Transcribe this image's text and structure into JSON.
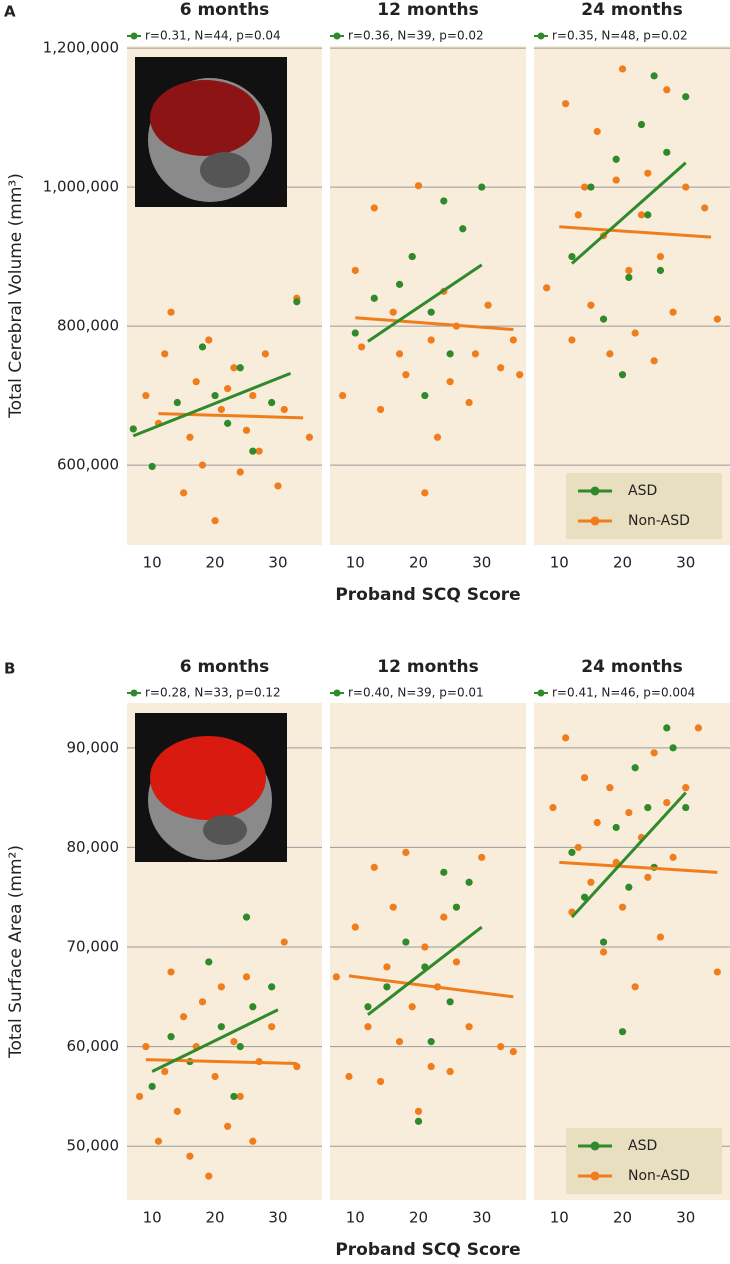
{
  "chart_data": [
    {
      "type": "scatter",
      "panel_label": "A",
      "title": "6 months",
      "annotation": "r=0.31, N=44, p=0.04",
      "ylabel": "Total Cerebral Volume (mm³)",
      "xlim": [
        6,
        37
      ],
      "xticks": [
        10,
        20,
        30
      ],
      "ylim": [
        485000,
        1203000
      ],
      "yticks": [
        {
          "value": 600000,
          "label": "600,000"
        },
        {
          "value": 800000,
          "label": "800,000"
        },
        {
          "value": 1000000,
          "label": "1,000,000"
        },
        {
          "value": 1200000,
          "label": "1,200,000"
        }
      ],
      "grid": true,
      "series": [
        {
          "name": "ASD",
          "color": "#2e8a2a",
          "x": [
            7,
            10,
            14,
            18,
            20,
            22,
            24,
            26,
            29,
            33
          ],
          "y": [
            652000,
            598000,
            690000,
            770000,
            700000,
            660000,
            740000,
            620000,
            690000,
            835000
          ],
          "fit_x": [
            7,
            32
          ],
          "fit_y": [
            642000,
            732000
          ]
        },
        {
          "name": "Non-ASD",
          "color": "#f07d1c",
          "x": [
            9,
            11,
            12,
            13,
            15,
            16,
            17,
            18,
            19,
            20,
            21,
            22,
            23,
            24,
            25,
            26,
            27,
            28,
            30,
            31,
            33,
            35
          ],
          "y": [
            700000,
            660000,
            760000,
            820000,
            560000,
            640000,
            720000,
            600000,
            780000,
            520000,
            680000,
            710000,
            740000,
            590000,
            650000,
            700000,
            620000,
            760000,
            570000,
            680000,
            840000,
            640000
          ],
          "fit_x": [
            11,
            34
          ],
          "fit_y": [
            674000,
            668000
          ]
        }
      ]
    },
    {
      "type": "scatter",
      "title": "12 months",
      "annotation": "r=0.36, N=39, p=0.02",
      "xlabel": "Proband SCQ Score",
      "xlim": [
        6,
        37
      ],
      "xticks": [
        10,
        20,
        30
      ],
      "ylim": [
        485000,
        1203000
      ],
      "series": [
        {
          "name": "ASD",
          "color": "#2e8a2a",
          "x": [
            10,
            13,
            17,
            19,
            21,
            22,
            24,
            25,
            27,
            30
          ],
          "y": [
            790000,
            840000,
            860000,
            900000,
            700000,
            820000,
            980000,
            760000,
            940000,
            1000000
          ],
          "fit_x": [
            12,
            30
          ],
          "fit_y": [
            778000,
            888000
          ]
        },
        {
          "name": "Non-ASD",
          "color": "#f07d1c",
          "x": [
            8,
            10,
            11,
            13,
            14,
            16,
            17,
            18,
            19,
            20,
            21,
            22,
            23,
            24,
            25,
            26,
            28,
            29,
            31,
            33,
            35,
            36
          ],
          "y": [
            700000,
            880000,
            770000,
            970000,
            680000,
            820000,
            760000,
            730000,
            900000,
            1002000,
            560000,
            780000,
            640000,
            850000,
            720000,
            800000,
            690000,
            760000,
            830000,
            740000,
            780000,
            730000
          ],
          "fit_x": [
            10,
            35
          ],
          "fit_y": [
            812000,
            795000
          ]
        }
      ]
    },
    {
      "type": "scatter",
      "title": "24 months",
      "annotation": "r=0.35, N=48, p=0.02",
      "legend": "lower right",
      "xlim": [
        6,
        37
      ],
      "xticks": [
        10,
        20,
        30
      ],
      "ylim": [
        485000,
        1203000
      ],
      "series": [
        {
          "name": "ASD",
          "color": "#2e8a2a",
          "x": [
            12,
            15,
            17,
            19,
            20,
            21,
            23,
            24,
            25,
            26,
            27,
            30
          ],
          "y": [
            900000,
            1000000,
            810000,
            1040000,
            730000,
            870000,
            1090000,
            960000,
            1160000,
            880000,
            1050000,
            1130000
          ],
          "fit_x": [
            12,
            30
          ],
          "fit_y": [
            890000,
            1035000
          ]
        },
        {
          "name": "Non-ASD",
          "color": "#f07d1c",
          "x": [
            8,
            11,
            12,
            13,
            14,
            15,
            16,
            17,
            18,
            19,
            20,
            21,
            22,
            23,
            24,
            25,
            26,
            27,
            28,
            30,
            33,
            35
          ],
          "y": [
            855000,
            1120000,
            780000,
            960000,
            1000000,
            830000,
            1080000,
            930000,
            760000,
            1010000,
            1170000,
            880000,
            790000,
            960000,
            1020000,
            750000,
            900000,
            1140000,
            820000,
            1000000,
            970000,
            810000
          ],
          "fit_x": [
            10,
            34
          ],
          "fit_y": [
            943000,
            928000
          ]
        }
      ]
    },
    {
      "type": "scatter",
      "panel_label": "B",
      "title": "6 months",
      "annotation": "r=0.28, N=33, p=0.12",
      "ylabel": "Total Surface Area (mm²)",
      "xlim": [
        6,
        37
      ],
      "xticks": [
        10,
        20,
        30
      ],
      "ylim": [
        44600,
        94500
      ],
      "yticks": [
        {
          "value": 50000,
          "label": "50,000"
        },
        {
          "value": 60000,
          "label": "60,000"
        },
        {
          "value": 70000,
          "label": "70,000"
        },
        {
          "value": 80000,
          "label": "80,000"
        },
        {
          "value": 90000,
          "label": "90,000"
        }
      ],
      "grid": true,
      "series": [
        {
          "name": "ASD",
          "color": "#2e8a2a",
          "x": [
            10,
            13,
            16,
            19,
            21,
            23,
            24,
            25,
            26,
            29
          ],
          "y": [
            56000,
            61000,
            58500,
            68500,
            62000,
            55000,
            60000,
            73000,
            64000,
            66000
          ],
          "fit_x": [
            10,
            30
          ],
          "fit_y": [
            57500,
            63700
          ]
        },
        {
          "name": "Non-ASD",
          "color": "#f07d1c",
          "x": [
            8,
            9,
            11,
            12,
            13,
            14,
            15,
            16,
            17,
            18,
            19,
            20,
            21,
            22,
            23,
            24,
            25,
            26,
            27,
            29,
            31,
            33
          ],
          "y": [
            55000,
            60000,
            50500,
            57500,
            67500,
            53500,
            63000,
            49000,
            60000,
            64500,
            47000,
            57000,
            66000,
            52000,
            60500,
            55000,
            67000,
            50500,
            58500,
            62000,
            70500,
            58000
          ],
          "fit_x": [
            9,
            33
          ],
          "fit_y": [
            58700,
            58300
          ]
        }
      ]
    },
    {
      "type": "scatter",
      "title": "12 months",
      "annotation": "r=0.40, N=39, p=0.01",
      "xlabel": "Proband SCQ Score",
      "xlim": [
        6,
        37
      ],
      "xticks": [
        10,
        20,
        30
      ],
      "ylim": [
        44600,
        94500
      ],
      "series": [
        {
          "name": "ASD",
          "color": "#2e8a2a",
          "x": [
            12,
            15,
            18,
            20,
            21,
            22,
            24,
            25,
            26,
            28
          ],
          "y": [
            64000,
            66000,
            70500,
            52500,
            68000,
            60500,
            77500,
            64500,
            74000,
            76500
          ],
          "fit_x": [
            12,
            30
          ],
          "fit_y": [
            63200,
            72000
          ]
        },
        {
          "name": "Non-ASD",
          "color": "#f07d1c",
          "x": [
            7,
            9,
            10,
            12,
            13,
            14,
            15,
            16,
            17,
            18,
            19,
            20,
            21,
            22,
            23,
            24,
            25,
            26,
            28,
            30,
            33,
            35
          ],
          "y": [
            67000,
            57000,
            72000,
            62000,
            78000,
            56500,
            68000,
            74000,
            60500,
            79500,
            64000,
            53500,
            70000,
            58000,
            66000,
            73000,
            57500,
            68500,
            62000,
            79000,
            60000,
            59500
          ],
          "fit_x": [
            9,
            35
          ],
          "fit_y": [
            67100,
            65000
          ]
        }
      ]
    },
    {
      "type": "scatter",
      "title": "24 months",
      "annotation": "r=0.41, N=46, p=0.004",
      "legend": "lower right",
      "xlim": [
        6,
        37
      ],
      "xticks": [
        10,
        20,
        30
      ],
      "ylim": [
        44600,
        94500
      ],
      "series": [
        {
          "name": "ASD",
          "color": "#2e8a2a",
          "x": [
            12,
            14,
            17,
            19,
            20,
            21,
            22,
            24,
            25,
            27,
            28,
            30
          ],
          "y": [
            79500,
            75000,
            70500,
            82000,
            61500,
            76000,
            88000,
            84000,
            78000,
            92000,
            90000,
            84000
          ],
          "fit_x": [
            12,
            30
          ],
          "fit_y": [
            73000,
            85500
          ]
        },
        {
          "name": "Non-ASD",
          "color": "#f07d1c",
          "x": [
            9,
            11,
            12,
            13,
            14,
            15,
            16,
            17,
            18,
            19,
            20,
            21,
            22,
            23,
            24,
            25,
            26,
            27,
            28,
            30,
            32,
            35
          ],
          "y": [
            84000,
            91000,
            73500,
            80000,
            87000,
            76500,
            82500,
            69500,
            86000,
            78500,
            74000,
            83500,
            66000,
            81000,
            77000,
            89500,
            71000,
            84500,
            79000,
            86000,
            92000,
            67500
          ],
          "fit_x": [
            10,
            35
          ],
          "fit_y": [
            78500,
            77500
          ]
        }
      ]
    }
  ]
}
